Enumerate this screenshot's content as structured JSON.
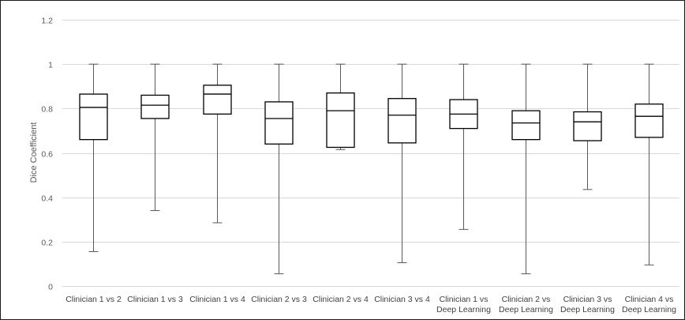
{
  "chart_data": {
    "type": "box",
    "ylabel": "Dice Coefficient",
    "ylim": [
      0,
      1.2
    ],
    "yticks": [
      "0",
      "0.2",
      "0.4",
      "0.6",
      "0.8",
      "1",
      "1.2"
    ],
    "grid": true,
    "colors": {
      "grid": "#d9d9d9",
      "box": "#000000",
      "whisker": "#595959"
    },
    "categories": [
      [
        "Clinician 1 vs 2"
      ],
      [
        "Clinician 1 vs 3"
      ],
      [
        "Clinician 1 vs 4"
      ],
      [
        "Clinician 2 vs 3"
      ],
      [
        "Clinician 2 vs 4"
      ],
      [
        "Clinician 3 vs 4"
      ],
      [
        "Clinician 1 vs",
        "Deep Learning"
      ],
      [
        "Clinician 2 vs",
        "Deep Learning"
      ],
      [
        "Clinician 3 vs",
        "Deep Learning"
      ],
      [
        "Clinician 4 vs",
        "Deep Learning"
      ]
    ],
    "boxes": [
      {
        "min": 0.155,
        "q1": 0.66,
        "median": 0.805,
        "q3": 0.865,
        "max": 1.0
      },
      {
        "min": 0.34,
        "q1": 0.755,
        "median": 0.815,
        "q3": 0.86,
        "max": 1.0
      },
      {
        "min": 0.285,
        "q1": 0.775,
        "median": 0.865,
        "q3": 0.905,
        "max": 1.0
      },
      {
        "min": 0.055,
        "q1": 0.64,
        "median": 0.755,
        "q3": 0.83,
        "max": 1.0
      },
      {
        "min": 0.615,
        "q1": 0.625,
        "median": 0.79,
        "q3": 0.87,
        "max": 1.0
      },
      {
        "min": 0.105,
        "q1": 0.645,
        "median": 0.77,
        "q3": 0.845,
        "max": 1.0
      },
      {
        "min": 0.255,
        "q1": 0.71,
        "median": 0.775,
        "q3": 0.84,
        "max": 1.0
      },
      {
        "min": 0.055,
        "q1": 0.66,
        "median": 0.735,
        "q3": 0.79,
        "max": 1.0
      },
      {
        "min": 0.435,
        "q1": 0.655,
        "median": 0.74,
        "q3": 0.785,
        "max": 1.0
      },
      {
        "min": 0.095,
        "q1": 0.67,
        "median": 0.765,
        "q3": 0.82,
        "max": 1.0
      }
    ]
  }
}
